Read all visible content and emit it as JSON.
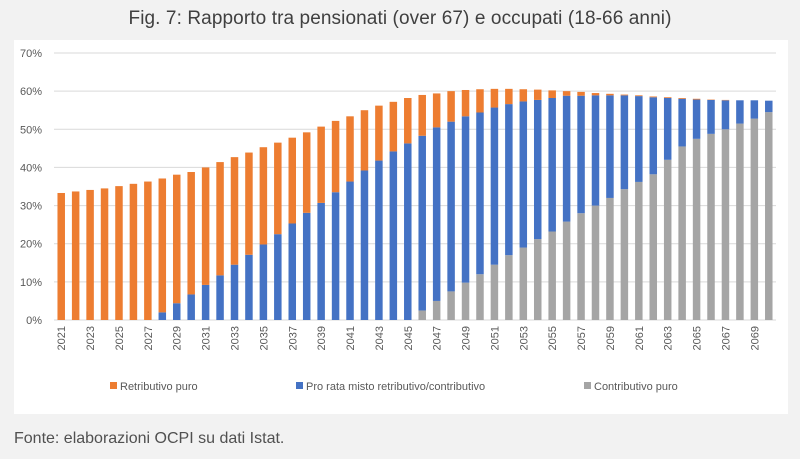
{
  "figure": {
    "title": "Fig. 7: Rapporto tra pensionati (over 67) e occupati (18-66 anni)",
    "source": "Fonte: elaborazioni OCPI su dati Istat."
  },
  "chart_data": {
    "type": "bar",
    "stacked": true,
    "title": "Fig. 7: Rapporto tra pensionati (over 67) e occupati (18-66 anni)",
    "xlabel": "",
    "ylabel": "",
    "ylim": [
      0,
      70
    ],
    "y_ticks": [
      "0%",
      "10%",
      "20%",
      "30%",
      "40%",
      "50%",
      "60%",
      "70%"
    ],
    "y_tick_values": [
      0,
      10,
      20,
      30,
      40,
      50,
      60,
      70
    ],
    "grid": true,
    "legend_position": "bottom",
    "categories": [
      "2021",
      "2022",
      "2023",
      "2024",
      "2025",
      "2026",
      "2027",
      "2028",
      "2029",
      "2030",
      "2031",
      "2032",
      "2033",
      "2034",
      "2035",
      "2036",
      "2037",
      "2038",
      "2039",
      "2040",
      "2041",
      "2042",
      "2043",
      "2044",
      "2045",
      "2046",
      "2047",
      "2048",
      "2049",
      "2050",
      "2051",
      "2052",
      "2053",
      "2054",
      "2055",
      "2056",
      "2057",
      "2058",
      "2059",
      "2060",
      "2061",
      "2062",
      "2063",
      "2064",
      "2065",
      "2066",
      "2067",
      "2068",
      "2069",
      "2070"
    ],
    "x_tick_labels": [
      "2021",
      "2023",
      "2025",
      "2027",
      "2029",
      "2031",
      "2033",
      "2035",
      "2037",
      "2039",
      "2041",
      "2043",
      "2045",
      "2047",
      "2049",
      "2051",
      "2053",
      "2055",
      "2057",
      "2059",
      "2061",
      "2063",
      "2065",
      "2067",
      "2069"
    ],
    "series": [
      {
        "name": "Contributivo puro",
        "color": "#a5a5a5",
        "values": [
          0,
          0,
          0,
          0,
          0,
          0,
          0,
          0,
          0,
          0,
          0,
          0,
          0,
          0,
          0,
          0,
          0,
          0,
          0,
          0,
          0,
          0,
          0,
          0,
          0,
          2.5,
          5.0,
          7.5,
          9.8,
          12.0,
          14.5,
          17.0,
          19.0,
          21.2,
          23.2,
          25.8,
          28.0,
          30.0,
          32.0,
          34.3,
          36.2,
          38.2,
          42.0,
          45.5,
          47.5,
          48.8,
          50.0,
          51.5,
          52.8,
          54.5
        ]
      },
      {
        "name": "Pro rata misto retributivo/contributivo",
        "color": "#4472c4",
        "values": [
          0,
          0,
          0,
          0,
          0,
          0,
          0,
          2.0,
          4.4,
          6.7,
          9.2,
          11.7,
          14.5,
          17.1,
          19.8,
          22.5,
          25.3,
          28.1,
          30.7,
          33.5,
          36.3,
          39.2,
          41.8,
          44.2,
          46.3,
          45.8,
          45.5,
          44.5,
          43.6,
          42.4,
          41.2,
          39.6,
          38.3,
          36.5,
          35.0,
          33.0,
          30.8,
          28.9,
          26.9,
          24.6,
          22.5,
          20.2,
          16.2,
          12.5,
          10.3,
          8.9,
          7.6,
          6.1,
          4.8,
          3.0
        ]
      },
      {
        "name": "Retributivo puro",
        "color": "#ed7d31",
        "values": [
          33.3,
          33.7,
          34.1,
          34.5,
          35.1,
          35.7,
          36.3,
          35.1,
          33.7,
          32.1,
          30.8,
          29.7,
          28.2,
          26.8,
          25.5,
          24.0,
          22.5,
          21.1,
          20.0,
          18.7,
          17.1,
          15.8,
          14.4,
          13.0,
          11.9,
          10.7,
          8.9,
          8.0,
          6.9,
          6.1,
          4.9,
          4.0,
          3.2,
          2.7,
          2.0,
          1.2,
          1.0,
          0.6,
          0.4,
          0.2,
          0.2,
          0.2,
          0.2,
          0.2,
          0.2,
          0.1,
          0.1,
          0.0,
          0.0,
          0.0
        ]
      }
    ],
    "legend": [
      "Retributivo puro",
      "Pro rata misto retributivo/contributivo",
      "Contributivo puro"
    ]
  }
}
